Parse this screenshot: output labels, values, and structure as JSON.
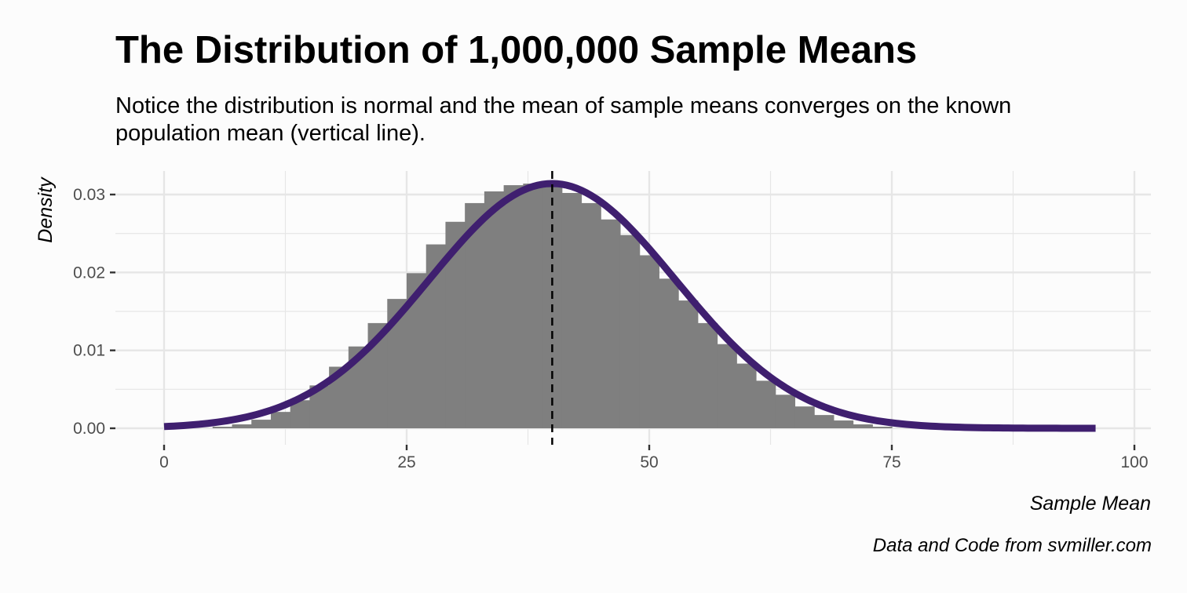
{
  "title": "The Distribution of 1,000,000 Sample Means",
  "subtitle": "Notice the distribution is normal and the mean of sample means converges on the known population mean (vertical line).",
  "caption": "Data and Code from svmiller.com",
  "colors": {
    "histogram": "#7f7f7f",
    "curve": "#3f1f6f",
    "mean_line": "#000000",
    "grid": "#e6e6e6",
    "background": "#fcfcfc"
  },
  "chart_data": {
    "type": "histogram",
    "xlabel": "Sample Mean",
    "ylabel": "Density",
    "xlim": [
      0,
      100
    ],
    "ylim": [
      0,
      0.032
    ],
    "x_ticks": [
      0,
      25,
      50,
      75,
      100
    ],
    "x_tick_labels": [
      "0",
      "25",
      "50",
      "75",
      "100"
    ],
    "y_ticks": [
      0,
      0.01,
      0.02,
      0.03
    ],
    "y_tick_labels": [
      "0.00",
      "0.01",
      "0.02",
      "0.03"
    ],
    "grid": true,
    "population_mean": 40,
    "normal_curve": {
      "mean": 40,
      "sd": 12.7,
      "x_range": [
        0,
        96
      ]
    },
    "histogram_bins": [
      [
        6,
        0.0002
      ],
      [
        8,
        0.0005
      ],
      [
        10,
        0.0011
      ],
      [
        12,
        0.0021
      ],
      [
        14,
        0.0036
      ],
      [
        16,
        0.0055
      ],
      [
        18,
        0.0079
      ],
      [
        20,
        0.0105
      ],
      [
        22,
        0.0135
      ],
      [
        24,
        0.0166
      ],
      [
        26,
        0.0199
      ],
      [
        28,
        0.0236
      ],
      [
        30,
        0.0265
      ],
      [
        32,
        0.0289
      ],
      [
        34,
        0.0304
      ],
      [
        36,
        0.0312
      ],
      [
        38,
        0.0314
      ],
      [
        40,
        0.0311
      ],
      [
        42,
        0.0302
      ],
      [
        44,
        0.0289
      ],
      [
        46,
        0.0268
      ],
      [
        48,
        0.0248
      ],
      [
        50,
        0.0222
      ],
      [
        52,
        0.0192
      ],
      [
        54,
        0.0164
      ],
      [
        56,
        0.0135
      ],
      [
        58,
        0.0108
      ],
      [
        60,
        0.0083
      ],
      [
        62,
        0.0061
      ],
      [
        64,
        0.0043
      ],
      [
        66,
        0.0028
      ],
      [
        68,
        0.0017
      ],
      [
        70,
        0.001
      ],
      [
        72,
        0.0005
      ],
      [
        74,
        0.0002
      ]
    ]
  }
}
